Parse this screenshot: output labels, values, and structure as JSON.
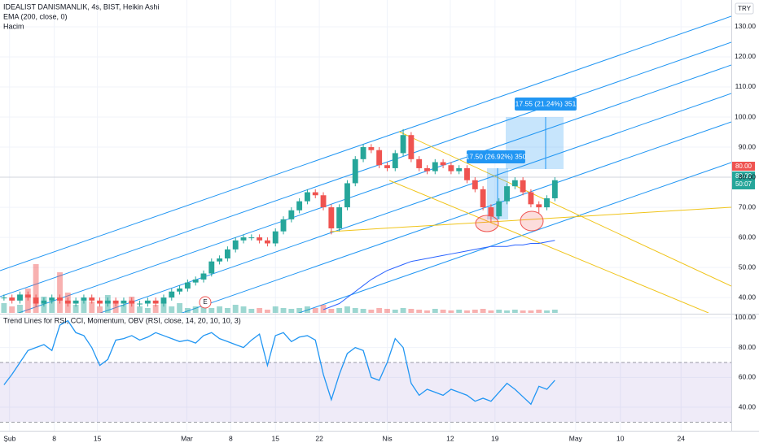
{
  "chart_data": [
    {
      "type": "candlestick",
      "title": "IDEALIST DANISMANLIK, 4s, BIST, Heikin Ashi",
      "indicator": "EMA (200, close, 0)",
      "volume_label": "Hacim",
      "currency": "TRY",
      "up_color": "#26a69a",
      "down_color": "#ef5350",
      "ema_color": "#2962ff",
      "xlim": [
        -0.5,
        91.1
      ],
      "ylim": [
        34.9,
        138.9
      ],
      "yticks": [
        {
          "value": 40,
          "label": "40.00"
        },
        {
          "value": 50,
          "label": "50.00"
        },
        {
          "value": 60,
          "label": "60.00"
        },
        {
          "value": 70,
          "label": "70.00"
        },
        {
          "value": 80,
          "label": "80.00"
        },
        {
          "value": 90,
          "label": "90.00"
        },
        {
          "value": 100,
          "label": "100.00"
        },
        {
          "value": 110,
          "label": "110.00"
        },
        {
          "value": 120,
          "label": "120.00"
        },
        {
          "value": 130,
          "label": "130.00"
        }
      ],
      "open": [
        40,
        40,
        39,
        41,
        40,
        38,
        39,
        40,
        39,
        38,
        39,
        40,
        39,
        38,
        39,
        38,
        39,
        38,
        38,
        39,
        38,
        40,
        42,
        43,
        45,
        46,
        48,
        52,
        53,
        56,
        59,
        60,
        60,
        59,
        58,
        62,
        66,
        69,
        72,
        75,
        74,
        70,
        63,
        70,
        78,
        86,
        90,
        89,
        84,
        83,
        88,
        94,
        86,
        83,
        82,
        85,
        84,
        82,
        83,
        79,
        76,
        70,
        67,
        72,
        77,
        79,
        75,
        71,
        70,
        73
      ],
      "high": [
        41,
        41,
        42,
        42,
        41,
        40,
        41,
        41,
        40,
        40,
        41,
        41,
        40,
        40,
        40,
        40,
        40,
        39,
        40,
        40,
        41,
        43,
        44,
        46,
        47,
        49,
        53,
        54,
        57,
        60,
        61,
        61,
        61,
        60,
        63,
        67,
        70,
        73,
        76,
        76,
        75,
        71,
        71,
        79,
        87,
        91,
        91,
        90,
        85,
        89,
        96,
        95,
        87,
        84,
        86,
        86,
        85,
        84,
        84,
        80,
        77,
        71,
        73,
        78,
        80,
        80,
        76,
        72,
        74,
        80
      ],
      "low": [
        39,
        38,
        38,
        39,
        37,
        37,
        38,
        38,
        37,
        37,
        38,
        38,
        37,
        37,
        37,
        37,
        37,
        37,
        37,
        37,
        37,
        39,
        41,
        42,
        44,
        45,
        47,
        51,
        52,
        55,
        58,
        59,
        58,
        57,
        57,
        61,
        65,
        68,
        71,
        73,
        69,
        61,
        62,
        69,
        77,
        85,
        88,
        83,
        82,
        82,
        87,
        85,
        82,
        81,
        81,
        83,
        81,
        81,
        78,
        75,
        69,
        65,
        66,
        71,
        76,
        74,
        70,
        68,
        69,
        72
      ],
      "close": [
        40,
        39,
        41,
        40,
        38,
        39,
        40,
        39,
        38,
        39,
        40,
        39,
        38,
        39,
        38,
        39,
        38,
        38,
        39,
        38,
        40,
        42,
        43,
        45,
        46,
        48,
        52,
        53,
        56,
        59,
        60,
        60,
        59,
        58,
        62,
        66,
        69,
        72,
        75,
        74,
        70,
        63,
        70,
        78,
        86,
        90,
        89,
        84,
        83,
        88,
        94,
        86,
        83,
        82,
        85,
        84,
        82,
        83,
        79,
        76,
        70,
        67,
        72,
        77,
        79,
        75,
        71,
        70,
        73,
        79
      ],
      "volume": [
        12,
        8,
        10,
        30,
        60,
        20,
        15,
        50,
        25,
        10,
        18,
        14,
        8,
        22,
        12,
        10,
        20,
        8,
        6,
        10,
        14,
        8,
        12,
        6,
        8,
        10,
        6,
        8,
        6,
        10,
        8,
        5,
        6,
        4,
        8,
        6,
        5,
        6,
        8,
        6,
        10,
        5,
        6,
        8,
        6,
        5,
        4,
        6,
        5,
        4,
        6,
        5,
        4,
        3,
        5,
        4,
        3,
        4,
        3,
        4,
        5,
        3,
        4,
        3,
        4,
        3,
        3,
        4,
        3,
        4
      ],
      "ema": [
        null,
        null,
        null,
        null,
        null,
        null,
        null,
        null,
        null,
        null,
        null,
        null,
        null,
        null,
        null,
        null,
        null,
        null,
        null,
        null,
        null,
        null,
        null,
        null,
        null,
        null,
        null,
        null,
        null,
        null,
        null,
        null,
        null,
        null,
        null,
        null,
        null,
        null,
        null,
        null,
        36,
        37,
        38,
        40,
        42,
        44,
        46,
        47.5,
        49,
        50,
        51,
        52,
        52.5,
        53,
        53.5,
        54,
        54.5,
        55,
        55.5,
        56,
        56.5,
        57,
        57,
        57,
        57.5,
        57.5,
        58,
        58,
        58.5,
        59
      ],
      "annotations": [
        "17.50 (26.92%) 350",
        "17.55 (21.24%) 351",
        "E"
      ],
      "price_tags": [
        "80.00",
        "80.00",
        "50:07"
      ]
    },
    {
      "type": "line",
      "title": "Trend Lines for RSI, CCI, Momentum, OBV (RSI, close, 14, 20, 10, 10, 3)",
      "xlim": [
        -0.5,
        91.1
      ],
      "ylim": [
        24.2,
        101.6
      ],
      "yticks": [
        {
          "value": 40,
          "label": "40.00"
        },
        {
          "value": 60,
          "label": "60.00"
        },
        {
          "value": 80,
          "label": "80.00"
        },
        {
          "value": 100,
          "label": "100.00"
        }
      ],
      "bands": [
        70,
        30
      ],
      "xticks": [
        {
          "value": 0.7,
          "label": "Şub"
        },
        {
          "value": 6.3,
          "label": "8"
        },
        {
          "value": 11.7,
          "label": "15"
        },
        {
          "value": 22.9,
          "label": "Mar"
        },
        {
          "value": 28.4,
          "label": "8"
        },
        {
          "value": 34,
          "label": "15"
        },
        {
          "value": 39.5,
          "label": "22"
        },
        {
          "value": 48,
          "label": "Nis"
        },
        {
          "value": 55.9,
          "label": "12"
        },
        {
          "value": 61.5,
          "label": "19"
        },
        {
          "value": 71.6,
          "label": "May"
        },
        {
          "value": 77.2,
          "label": "10"
        },
        {
          "value": 84.8,
          "label": "24"
        }
      ],
      "series": [
        {
          "color": "#2196f3",
          "values": [
            55,
            62,
            70,
            78,
            80,
            82,
            78,
            95,
            98,
            90,
            88,
            80,
            68,
            72,
            85,
            86,
            88,
            85,
            87,
            90,
            88,
            86,
            84,
            85,
            83,
            88,
            90,
            86,
            84,
            82,
            80,
            85,
            89,
            68,
            88,
            90,
            84,
            87,
            88,
            85,
            62,
            45,
            62,
            76,
            80,
            78,
            60,
            58,
            70,
            86,
            80,
            56,
            48,
            52,
            50,
            48,
            52,
            50,
            48,
            44,
            46,
            44,
            50,
            56,
            52,
            47,
            42,
            54,
            52,
            58
          ]
        }
      ]
    }
  ]
}
